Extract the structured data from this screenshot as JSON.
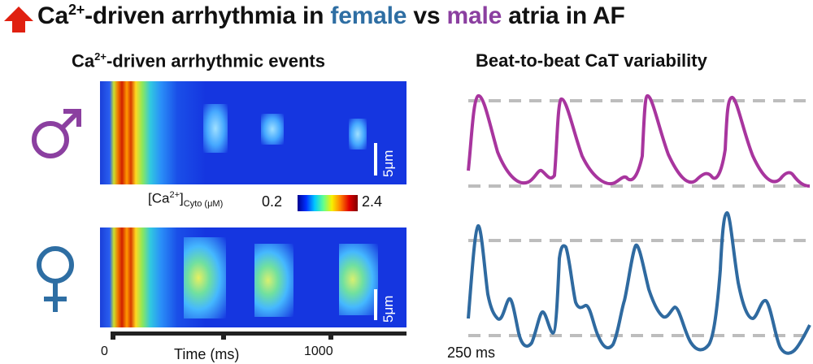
{
  "title": {
    "ca": "Ca",
    "ca_sup": "2+",
    "part1": "-driven arrhythmia in ",
    "female": "female",
    "vs": " vs ",
    "male": "male",
    "part2": " atria in AF"
  },
  "colors": {
    "female": "#2e6ea3",
    "male": "#8b3fa0",
    "arrow": "#e02010",
    "dash": "#bdbdbd"
  },
  "left_panel": {
    "heading_ca": "Ca",
    "heading_sup": "2+",
    "heading_rest": "-driven arrhythmic events",
    "male_symbol": "♂",
    "female_symbol": "♀",
    "scale_bar_label": "5μm",
    "colorbar_prefix": "[Ca",
    "colorbar_sup": "2+",
    "colorbar_suffix": "]",
    "colorbar_sub": "Cyto (μM)",
    "colorbar_min": "0.2",
    "colorbar_max": "2.4",
    "axis_label": "Time (ms)",
    "axis_tick_0": "0",
    "axis_tick_1000": "1000"
  },
  "right_panel": {
    "heading": "Beat-to-beat CaT variability",
    "time_scale_label": "250 ms"
  },
  "icons": [
    "up-arrow-icon",
    "male-symbol-icon",
    "female-symbol-icon"
  ]
}
